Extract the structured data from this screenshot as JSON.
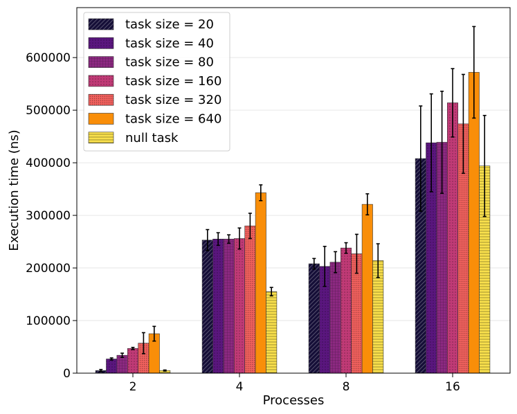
{
  "chart_data": {
    "type": "bar",
    "title": "",
    "xlabel": "Processes",
    "ylabel": "Execution time (ns)",
    "categories": [
      "2",
      "4",
      "8",
      "16"
    ],
    "ylim": [
      0,
      695000
    ],
    "yticks": [
      0,
      100000,
      200000,
      300000,
      400000,
      500000,
      600000
    ],
    "ytick_labels": [
      "0",
      "100000",
      "200000",
      "300000",
      "400000",
      "500000",
      "600000"
    ],
    "grid": true,
    "legend_position": "top-left",
    "series": [
      {
        "name": "task size = 20",
        "color": "#150e37",
        "pattern": "hatch-diag",
        "values": [
          5000,
          253000,
          208000,
          408000
        ],
        "errors": [
          2000,
          20000,
          10000,
          100000
        ]
      },
      {
        "name": "task size = 40",
        "color": "#5a167e",
        "pattern": "hatch-dots",
        "values": [
          27000,
          255000,
          203000,
          438000
        ],
        "errors": [
          2000,
          12000,
          38000,
          93000
        ]
      },
      {
        "name": "task size = 80",
        "color": "#8c2981",
        "pattern": "hatch-grid",
        "values": [
          34000,
          255000,
          211000,
          439000
        ],
        "errors": [
          4000,
          8000,
          20000,
          97000
        ]
      },
      {
        "name": "task size = 160",
        "color": "#c03a76",
        "pattern": "hatch-dots",
        "values": [
          47000,
          256000,
          238000,
          514000
        ],
        "errors": [
          2000,
          20000,
          10000,
          65000
        ]
      },
      {
        "name": "task size = 320",
        "color": "#f0605d",
        "pattern": "hatch-dense",
        "values": [
          57000,
          280000,
          227000,
          474000
        ],
        "errors": [
          20000,
          24000,
          37000,
          94000
        ]
      },
      {
        "name": "task size = 640",
        "color": "#f98e09",
        "pattern": "solid",
        "values": [
          75000,
          343000,
          321000,
          572000
        ],
        "errors": [
          14000,
          15000,
          20000,
          87000
        ]
      },
      {
        "name": "null task",
        "color": "#f9e04c",
        "pattern": "hatch-horiz",
        "values": [
          5000,
          155000,
          214000,
          394000
        ],
        "errors": [
          1000,
          8000,
          32000,
          96000
        ]
      }
    ]
  }
}
